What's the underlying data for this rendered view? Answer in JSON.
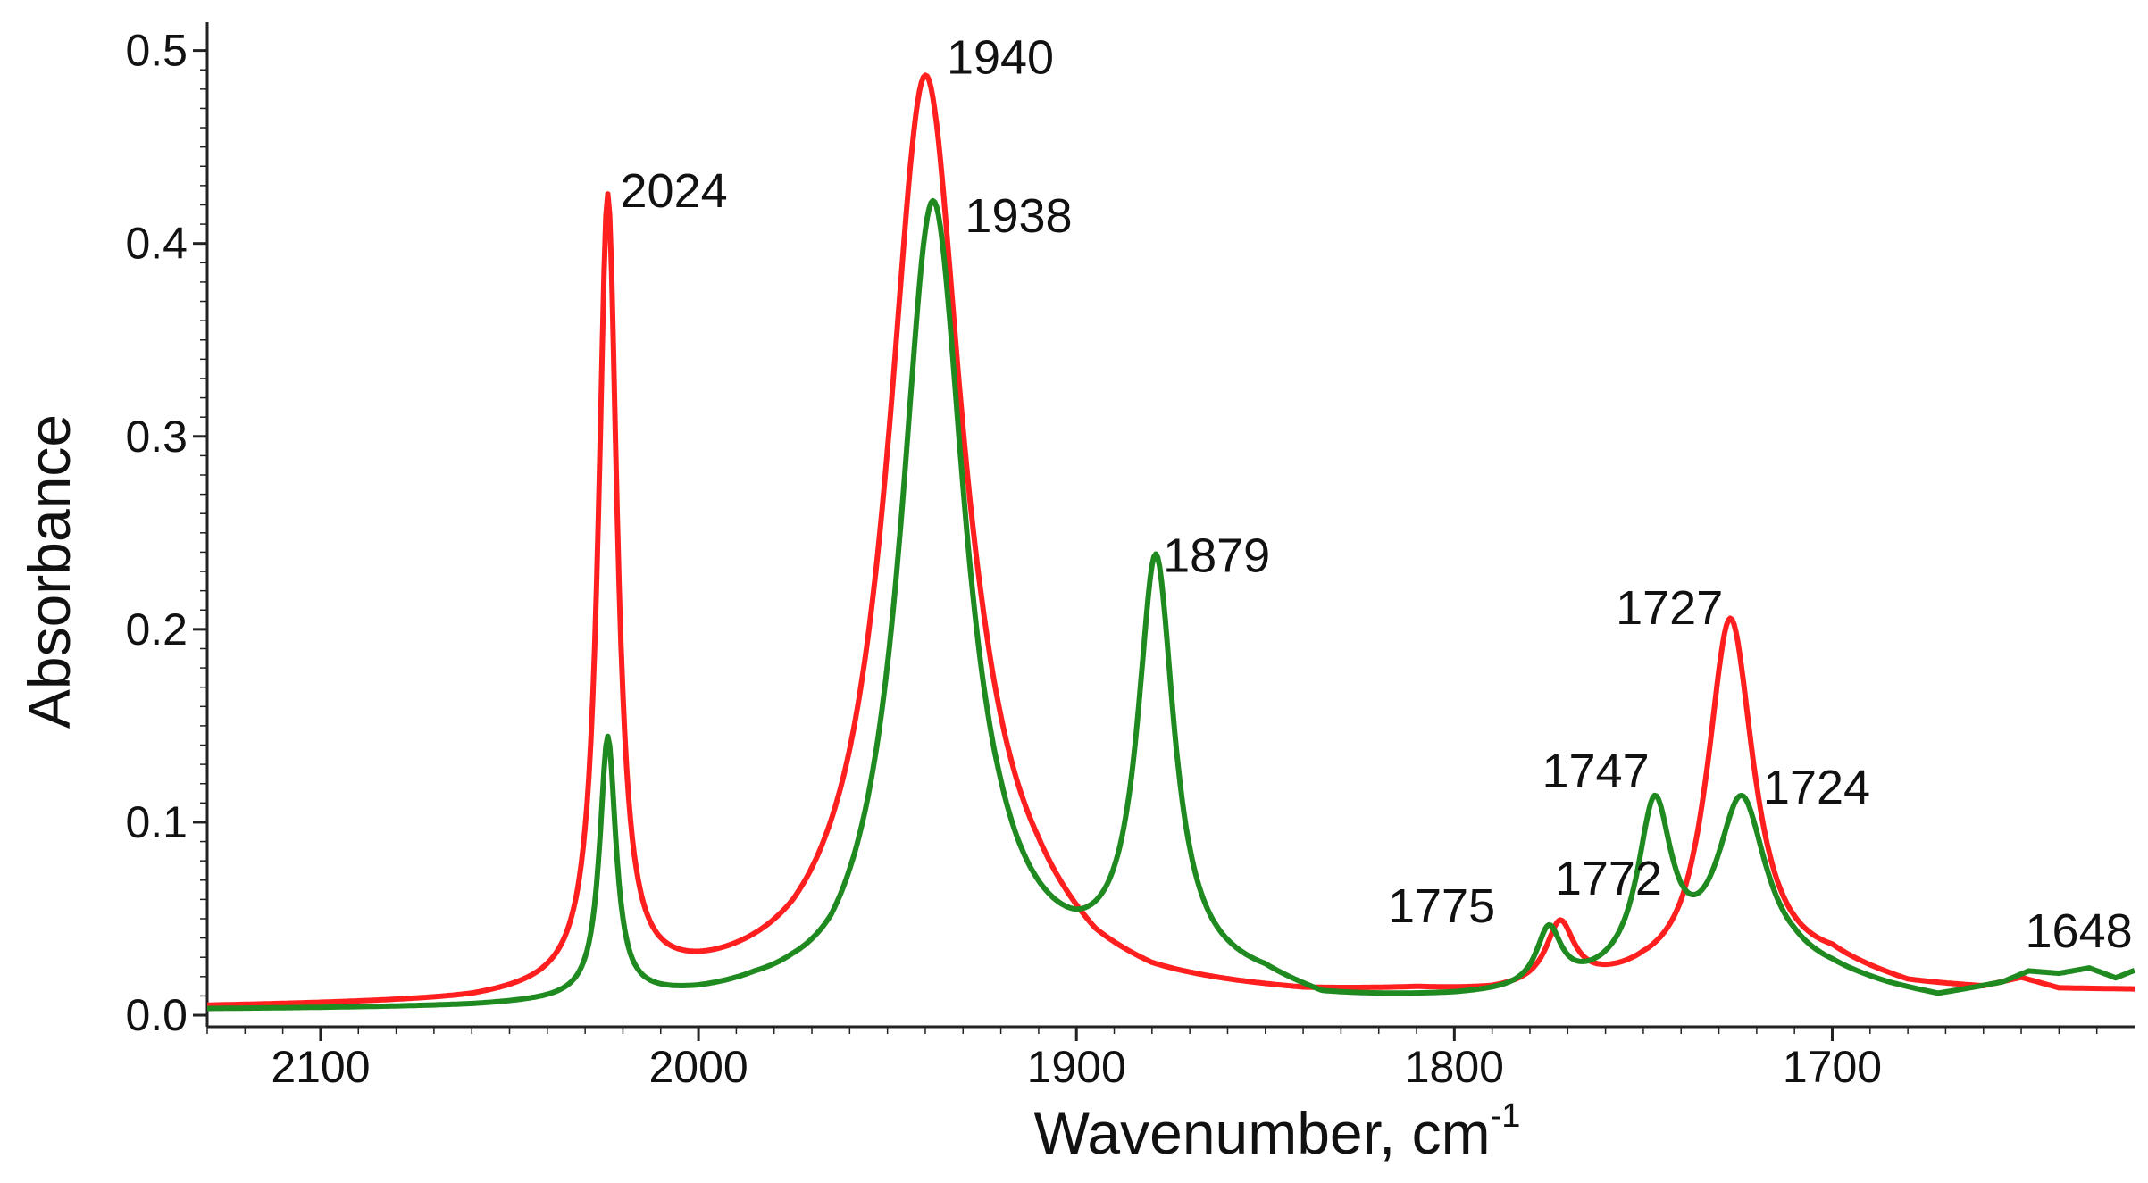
{
  "chart_data": {
    "type": "line",
    "title": "",
    "xlabel": "Wavenumber, cm",
    "xlabel_superscript": "-1",
    "ylabel": "Absorbance",
    "xlim": [
      2130,
      1620
    ],
    "ylim": [
      -0.006,
      0.51
    ],
    "x_reversed": true,
    "grid": false,
    "legend": "none",
    "x_ticks": [
      2100,
      2000,
      1900,
      1800,
      1700
    ],
    "y_ticks": [
      0.0,
      0.1,
      0.2,
      0.3,
      0.4,
      0.5
    ],
    "y_tick_labels": [
      "0.0",
      "0.1",
      "0.2",
      "0.3",
      "0.4",
      "0.5"
    ],
    "series": [
      {
        "color": "#ff1f1f",
        "baseline": [
          [
            2130,
            0.003
          ],
          [
            2060,
            0.004
          ],
          [
            2035,
            0.007
          ],
          [
            2018,
            0.009
          ],
          [
            2000,
            0.009
          ],
          [
            1975,
            0.01
          ],
          [
            1960,
            0.015
          ],
          [
            1925,
            0.035
          ],
          [
            1910,
            0.028
          ],
          [
            1895,
            0.014
          ],
          [
            1880,
            0.009
          ],
          [
            1860,
            0.008
          ],
          [
            1840,
            0.007
          ],
          [
            1810,
            0.009
          ],
          [
            1790,
            0.008
          ],
          [
            1770,
            0.01
          ],
          [
            1750,
            0.012
          ],
          [
            1740,
            0.01
          ],
          [
            1700,
            0.022
          ],
          [
            1680,
            0.013
          ],
          [
            1660,
            0.012
          ],
          [
            1650,
            0.017
          ],
          [
            1640,
            0.012
          ],
          [
            1620,
            0.012
          ]
        ],
        "peaks": [
          {
            "center": 2024,
            "height": 0.408,
            "width": 3.0
          },
          {
            "center": 1940,
            "height": 0.46,
            "width": 12.0
          },
          {
            "center": 1772,
            "height": 0.032,
            "width": 4.5
          },
          {
            "center": 1727,
            "height": 0.19,
            "width": 7.5
          }
        ]
      },
      {
        "color": "#1f8a1f",
        "baseline": [
          [
            2130,
            0.002
          ],
          [
            2060,
            0.002
          ],
          [
            2030,
            0.003
          ],
          [
            2016,
            0.003
          ],
          [
            2000,
            0.002
          ],
          [
            1985,
            0.002
          ],
          [
            1975,
            0.0
          ],
          [
            1965,
            -0.004
          ],
          [
            1950,
            0.0
          ],
          [
            1920,
            0.012
          ],
          [
            1900,
            0.01
          ],
          [
            1870,
            0.014
          ],
          [
            1850,
            0.012
          ],
          [
            1835,
            0.004
          ],
          [
            1800,
            0.006
          ],
          [
            1780,
            0.008
          ],
          [
            1760,
            0.012
          ],
          [
            1740,
            0.015
          ],
          [
            1710,
            0.02
          ],
          [
            1700,
            0.018
          ],
          [
            1685,
            0.012
          ],
          [
            1672,
            0.008
          ],
          [
            1655,
            0.015
          ],
          [
            1648,
            0.021
          ],
          [
            1640,
            0.02
          ],
          [
            1632,
            0.023
          ],
          [
            1625,
            0.018
          ],
          [
            1620,
            0.022
          ]
        ],
        "peaks": [
          {
            "center": 2024,
            "height": 0.135,
            "width": 2.6
          },
          {
            "center": 1938,
            "height": 0.415,
            "width": 10.5
          },
          {
            "center": 1879,
            "height": 0.213,
            "width": 5.8
          },
          {
            "center": 1775,
            "height": 0.03,
            "width": 4.0
          },
          {
            "center": 1747,
            "height": 0.088,
            "width": 5.5
          },
          {
            "center": 1724,
            "height": 0.09,
            "width": 8.0
          }
        ]
      }
    ],
    "annotations": [
      {
        "text": "2024",
        "x": 2024,
        "y": 0.418
      },
      {
        "text": "1940",
        "x": 1940,
        "y": 0.5
      },
      {
        "text": "1938",
        "x": 1938,
        "y": 0.43
      },
      {
        "text": "1879",
        "x": 1879,
        "y": 0.226
      },
      {
        "text": "1727",
        "x": 1727,
        "y": 0.2
      },
      {
        "text": "1747",
        "x": 1747,
        "y": 0.105
      },
      {
        "text": "1724",
        "x": 1724,
        "y": 0.107
      },
      {
        "text": "1775",
        "x": 1775,
        "y": 0.045
      },
      {
        "text": "1772",
        "x": 1772,
        "y": 0.045
      },
      {
        "text": "1648",
        "x": 1648,
        "y": 0.024
      }
    ]
  }
}
